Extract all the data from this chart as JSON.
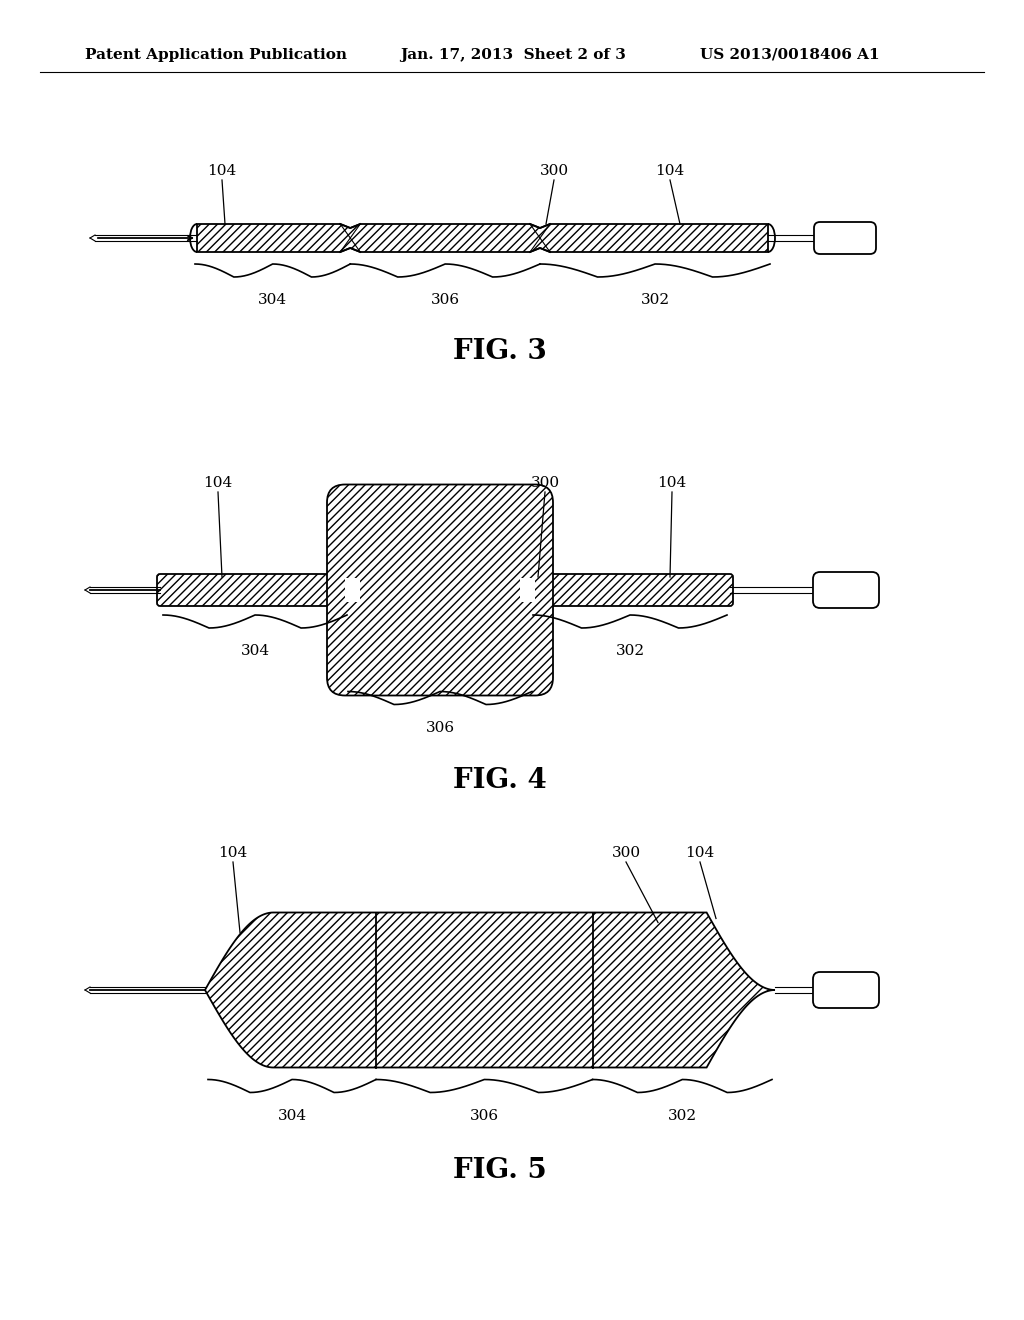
{
  "bg_color": "#ffffff",
  "header_left": "Patent Application Publication",
  "header_mid": "Jan. 17, 2013  Sheet 2 of 3",
  "header_right": "US 2013/0018406 A1",
  "fig3_label": "FIG. 3",
  "fig4_label": "FIG. 4",
  "fig5_label": "FIG. 5",
  "hatch_pattern": "////",
  "line_color": "#000000",
  "fig_label_fontsize": 20,
  "annot_fontsize": 11,
  "header_fontsize": 11
}
